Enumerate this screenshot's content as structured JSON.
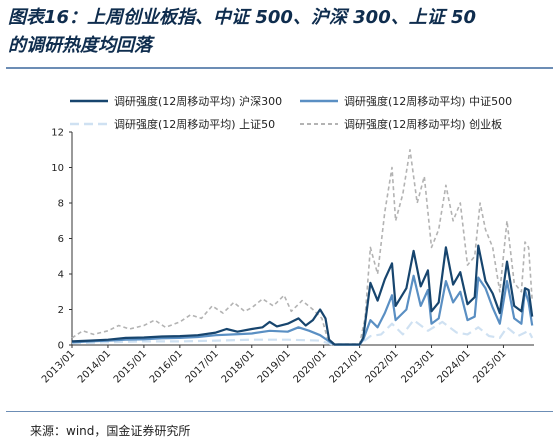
{
  "figure": {
    "title_line1": "图表16：上周创业板指、中证 500、沪深 300、上证 50",
    "title_line2": "的调研热度均回落",
    "source": "来源：wind，国金证券研究所"
  },
  "chart_data": {
    "type": "line",
    "title": "",
    "xlabel": "",
    "ylabel": "",
    "ylim": [
      0,
      12
    ],
    "y_ticks": [
      "0",
      "2",
      "4",
      "6",
      "8",
      "10",
      "12"
    ],
    "x_ticks": [
      "2013/01",
      "2014/01",
      "2015/01",
      "2016/01",
      "2017/01",
      "2018/01",
      "2019/01",
      "2020/01",
      "2021/01",
      "2022/01",
      "2023/01",
      "2024/01",
      "2025/01"
    ],
    "x_range": [
      2013.0,
      2025.85
    ],
    "grid": false,
    "legend_position": "top",
    "series": [
      {
        "name": "调研强度(12周移动平均) 沪深300",
        "color": "#17456e",
        "style": "solid",
        "width": 2.2,
        "points": [
          [
            2013.0,
            0.2
          ],
          [
            2013.5,
            0.25
          ],
          [
            2014.0,
            0.3
          ],
          [
            2014.5,
            0.4
          ],
          [
            2015.0,
            0.42
          ],
          [
            2015.5,
            0.48
          ],
          [
            2016.0,
            0.5
          ],
          [
            2016.5,
            0.55
          ],
          [
            2017.0,
            0.7
          ],
          [
            2017.3,
            0.9
          ],
          [
            2017.6,
            0.75
          ],
          [
            2018.0,
            0.9
          ],
          [
            2018.3,
            1.0
          ],
          [
            2018.5,
            1.3
          ],
          [
            2018.7,
            1.05
          ],
          [
            2019.0,
            1.2
          ],
          [
            2019.3,
            1.5
          ],
          [
            2019.5,
            1.1
          ],
          [
            2019.7,
            1.4
          ],
          [
            2019.9,
            2.0
          ],
          [
            2020.05,
            1.5
          ],
          [
            2020.15,
            0.3
          ],
          [
            2020.3,
            0.03
          ],
          [
            2021.0,
            0.03
          ],
          [
            2021.1,
            0.4
          ],
          [
            2021.3,
            3.5
          ],
          [
            2021.5,
            2.5
          ],
          [
            2021.7,
            3.7
          ],
          [
            2021.9,
            4.6
          ],
          [
            2022.0,
            2.2
          ],
          [
            2022.3,
            3.2
          ],
          [
            2022.5,
            5.3
          ],
          [
            2022.7,
            3.3
          ],
          [
            2022.9,
            4.2
          ],
          [
            2023.0,
            1.9
          ],
          [
            2023.2,
            2.4
          ],
          [
            2023.4,
            5.5
          ],
          [
            2023.6,
            3.4
          ],
          [
            2023.8,
            4.1
          ],
          [
            2024.0,
            2.3
          ],
          [
            2024.2,
            2.7
          ],
          [
            2024.3,
            5.6
          ],
          [
            2024.5,
            3.6
          ],
          [
            2024.7,
            2.9
          ],
          [
            2024.9,
            1.8
          ],
          [
            2025.1,
            4.7
          ],
          [
            2025.3,
            2.2
          ],
          [
            2025.5,
            1.9
          ],
          [
            2025.6,
            3.2
          ],
          [
            2025.7,
            3.1
          ],
          [
            2025.8,
            1.6
          ]
        ]
      },
      {
        "name": "调研强度(12周移动平均) 中证500",
        "color": "#5a8fc3",
        "style": "solid",
        "width": 2.2,
        "points": [
          [
            2013.0,
            0.15
          ],
          [
            2013.5,
            0.2
          ],
          [
            2014.0,
            0.25
          ],
          [
            2014.5,
            0.3
          ],
          [
            2015.0,
            0.32
          ],
          [
            2015.5,
            0.38
          ],
          [
            2016.0,
            0.4
          ],
          [
            2016.5,
            0.45
          ],
          [
            2017.0,
            0.55
          ],
          [
            2017.5,
            0.6
          ],
          [
            2018.0,
            0.65
          ],
          [
            2018.5,
            0.8
          ],
          [
            2019.0,
            0.75
          ],
          [
            2019.3,
            1.0
          ],
          [
            2019.6,
            0.8
          ],
          [
            2019.9,
            0.55
          ],
          [
            2020.15,
            0.2
          ],
          [
            2020.3,
            0.02
          ],
          [
            2021.0,
            0.02
          ],
          [
            2021.1,
            0.3
          ],
          [
            2021.3,
            1.4
          ],
          [
            2021.5,
            1.0
          ],
          [
            2021.7,
            1.8
          ],
          [
            2021.9,
            2.8
          ],
          [
            2022.0,
            1.4
          ],
          [
            2022.3,
            2.0
          ],
          [
            2022.5,
            3.9
          ],
          [
            2022.7,
            2.2
          ],
          [
            2022.9,
            3.1
          ],
          [
            2023.0,
            1.2
          ],
          [
            2023.2,
            1.5
          ],
          [
            2023.4,
            3.6
          ],
          [
            2023.6,
            2.4
          ],
          [
            2023.8,
            3.0
          ],
          [
            2024.0,
            1.4
          ],
          [
            2024.2,
            1.6
          ],
          [
            2024.3,
            3.8
          ],
          [
            2024.5,
            3.2
          ],
          [
            2024.7,
            2.1
          ],
          [
            2024.9,
            1.2
          ],
          [
            2025.1,
            3.6
          ],
          [
            2025.3,
            1.5
          ],
          [
            2025.5,
            1.2
          ],
          [
            2025.6,
            3.1
          ],
          [
            2025.7,
            2.4
          ],
          [
            2025.8,
            1.1
          ]
        ]
      },
      {
        "name": "调研强度(12周移动平均) 上证50",
        "color": "#cfe1f2",
        "style": "dashed",
        "width": 2.2,
        "points": [
          [
            2013.0,
            0.1
          ],
          [
            2014.0,
            0.15
          ],
          [
            2015.0,
            0.2
          ],
          [
            2016.0,
            0.2
          ],
          [
            2017.0,
            0.25
          ],
          [
            2018.0,
            0.3
          ],
          [
            2019.0,
            0.3
          ],
          [
            2019.9,
            0.25
          ],
          [
            2020.2,
            0.05
          ],
          [
            2021.0,
            0.02
          ],
          [
            2021.3,
            0.5
          ],
          [
            2021.6,
            0.6
          ],
          [
            2021.9,
            1.2
          ],
          [
            2022.2,
            0.6
          ],
          [
            2022.5,
            1.4
          ],
          [
            2022.9,
            0.8
          ],
          [
            2023.3,
            1.3
          ],
          [
            2023.7,
            0.7
          ],
          [
            2024.0,
            0.6
          ],
          [
            2024.3,
            1.0
          ],
          [
            2024.6,
            0.5
          ],
          [
            2024.9,
            0.4
          ],
          [
            2025.1,
            1.0
          ],
          [
            2025.4,
            0.5
          ],
          [
            2025.7,
            0.8
          ],
          [
            2025.8,
            0.4
          ]
        ]
      },
      {
        "name": "调研强度(12周移动平均) 创业板",
        "color": "#b3b3b3",
        "style": "dashed",
        "width": 1.6,
        "points": [
          [
            2013.0,
            0.4
          ],
          [
            2013.3,
            0.8
          ],
          [
            2013.6,
            0.6
          ],
          [
            2014.0,
            0.8
          ],
          [
            2014.3,
            1.1
          ],
          [
            2014.6,
            0.9
          ],
          [
            2015.0,
            1.1
          ],
          [
            2015.3,
            1.4
          ],
          [
            2015.6,
            1.0
          ],
          [
            2016.0,
            1.3
          ],
          [
            2016.3,
            1.7
          ],
          [
            2016.6,
            1.5
          ],
          [
            2016.9,
            2.2
          ],
          [
            2017.2,
            1.8
          ],
          [
            2017.5,
            2.4
          ],
          [
            2017.8,
            1.9
          ],
          [
            2018.0,
            2.1
          ],
          [
            2018.3,
            2.6
          ],
          [
            2018.6,
            2.2
          ],
          [
            2018.9,
            2.8
          ],
          [
            2019.1,
            1.9
          ],
          [
            2019.4,
            2.5
          ],
          [
            2019.7,
            2.0
          ],
          [
            2019.95,
            1.5
          ],
          [
            2020.1,
            0.4
          ],
          [
            2020.3,
            0.05
          ],
          [
            2021.0,
            0.05
          ],
          [
            2021.15,
            1.5
          ],
          [
            2021.3,
            5.5
          ],
          [
            2021.5,
            4.0
          ],
          [
            2021.7,
            7.5
          ],
          [
            2021.9,
            10.0
          ],
          [
            2022.0,
            7.0
          ],
          [
            2022.2,
            8.5
          ],
          [
            2022.4,
            11.0
          ],
          [
            2022.6,
            8.0
          ],
          [
            2022.8,
            9.5
          ],
          [
            2023.0,
            5.5
          ],
          [
            2023.2,
            6.5
          ],
          [
            2023.4,
            9.0
          ],
          [
            2023.6,
            7.0
          ],
          [
            2023.8,
            8.0
          ],
          [
            2024.0,
            4.5
          ],
          [
            2024.2,
            5.0
          ],
          [
            2024.35,
            8.0
          ],
          [
            2024.5,
            6.5
          ],
          [
            2024.7,
            5.5
          ],
          [
            2024.9,
            3.0
          ],
          [
            2025.1,
            7.0
          ],
          [
            2025.3,
            3.5
          ],
          [
            2025.5,
            3.0
          ],
          [
            2025.6,
            5.8
          ],
          [
            2025.7,
            5.5
          ],
          [
            2025.8,
            2.5
          ]
        ]
      }
    ]
  }
}
